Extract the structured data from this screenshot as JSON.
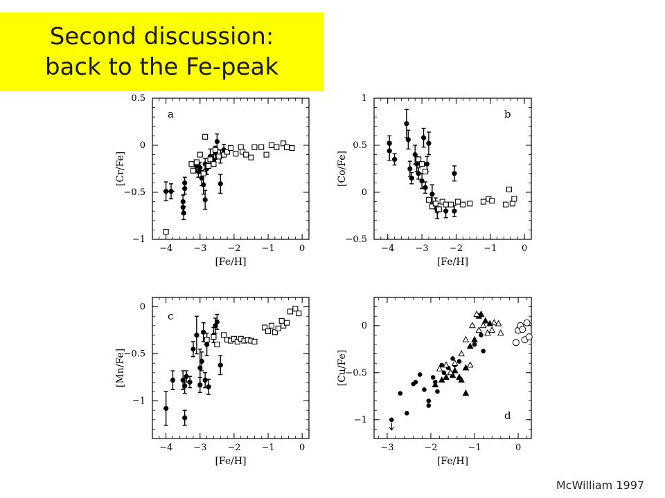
{
  "slide": {
    "title_line1": "Second discussion:",
    "title_line2": "back to the Fe-peak",
    "credit": "McWilliam 1997"
  },
  "colors": {
    "title_bg": "#ffff00",
    "ink": "#000000"
  },
  "chart_data": [
    {
      "type": "scatter",
      "panel_label": "a",
      "xlabel": "[Fe/H]",
      "ylabel": "[Cr/Fe]",
      "xlim": [
        -4.4,
        0.2
      ],
      "ylim": [
        -1,
        0.5
      ],
      "xticks": [
        -4,
        -3,
        -2,
        -1,
        0
      ],
      "yticks": [
        0.5,
        0,
        -0.5,
        -1
      ],
      "series": [
        {
          "marker": "filled-circle-errorbar",
          "points": [
            [
              -4.0,
              -0.49,
              0.08,
              0.1
            ],
            [
              -3.85,
              -0.49,
              0.1,
              0.08
            ],
            [
              -3.5,
              -0.6,
              0,
              0.07
            ],
            [
              -3.5,
              -0.66,
              0,
              0.07
            ],
            [
              -3.48,
              -0.72,
              0,
              0.07
            ],
            [
              -3.45,
              -0.4,
              0,
              0.06
            ],
            [
              -3.45,
              -0.46,
              0,
              0.06
            ],
            [
              -3.1,
              -0.22,
              0,
              0.06
            ],
            [
              -3.05,
              -0.28,
              0,
              0.06
            ],
            [
              -3.0,
              -0.24,
              0,
              0.06
            ],
            [
              -2.95,
              -0.35,
              0,
              0.08
            ],
            [
              -2.9,
              -0.42,
              0,
              0.1
            ],
            [
              -2.85,
              -0.2,
              0,
              0.06
            ],
            [
              -2.8,
              -0.25,
              0,
              0.06
            ],
            [
              -2.85,
              -0.58,
              0,
              0.1
            ],
            [
              -2.7,
              -0.12,
              0,
              0.08
            ],
            [
              -2.6,
              -0.16,
              0,
              0.06
            ],
            [
              -2.55,
              -0.08,
              0,
              0.07
            ],
            [
              -2.5,
              0.04,
              0,
              0.08
            ],
            [
              -2.4,
              -0.41,
              0,
              0.1
            ],
            [
              -2.4,
              -0.12,
              0,
              0.07
            ],
            [
              -2.3,
              -0.05,
              0,
              0.06
            ]
          ]
        },
        {
          "marker": "open-square",
          "points": [
            [
              -4.0,
              -0.92
            ],
            [
              -3.25,
              -0.2
            ],
            [
              -3.2,
              -0.27
            ],
            [
              -3.1,
              -0.18
            ],
            [
              -3.0,
              -0.1
            ],
            [
              -2.9,
              -0.3
            ],
            [
              -2.85,
              0.09
            ],
            [
              -2.75,
              -0.22
            ],
            [
              -2.7,
              -0.15
            ],
            [
              -2.6,
              -0.2
            ],
            [
              -2.55,
              -0.05
            ],
            [
              -2.45,
              -0.12
            ],
            [
              -2.3,
              -0.1
            ],
            [
              -2.2,
              -0.07
            ],
            [
              -2.1,
              -0.03
            ],
            [
              -1.95,
              -0.09
            ],
            [
              -1.8,
              -0.02
            ],
            [
              -1.75,
              -0.07
            ],
            [
              -1.65,
              -0.1
            ],
            [
              -1.5,
              -0.13
            ],
            [
              -1.4,
              -0.02
            ],
            [
              -1.2,
              -0.02
            ],
            [
              -1.05,
              -0.1
            ],
            [
              -0.9,
              0.0
            ],
            [
              -0.75,
              -0.02
            ],
            [
              -0.55,
              0.02
            ],
            [
              -0.45,
              -0.02
            ],
            [
              -0.3,
              -0.03
            ]
          ]
        }
      ]
    },
    {
      "type": "scatter",
      "panel_label": "b",
      "xlabel": "[Fe/H]",
      "ylabel": "[Co/Fe]",
      "xlim": [
        -4.4,
        0.2
      ],
      "ylim": [
        -0.5,
        1
      ],
      "xticks": [
        -4,
        -3,
        -2,
        -1,
        0
      ],
      "yticks": [
        1,
        0.5,
        0,
        -0.5
      ],
      "series": [
        {
          "marker": "filled-circle-errorbar",
          "points": [
            [
              -3.95,
              0.52,
              0,
              0.08
            ],
            [
              -3.95,
              0.44,
              0,
              0.1
            ],
            [
              -3.8,
              0.35,
              0,
              0.06
            ],
            [
              -3.45,
              0.73,
              0,
              0.15
            ],
            [
              -3.4,
              0.56,
              0,
              0.1
            ],
            [
              -3.35,
              0.25,
              0,
              0.08
            ],
            [
              -3.3,
              0.15,
              0,
              0.06
            ],
            [
              -3.2,
              0.4,
              0,
              0.1
            ],
            [
              -3.15,
              0.3,
              0,
              0.08
            ],
            [
              -3.1,
              0.2,
              0,
              0.06
            ],
            [
              -3.0,
              0.12,
              0,
              0.08
            ],
            [
              -2.95,
              0.58,
              0,
              0.1
            ],
            [
              -2.9,
              0.05,
              0,
              0.06
            ],
            [
              -2.85,
              0.3,
              0,
              0.08
            ],
            [
              -2.8,
              0.52,
              0,
              0.12
            ],
            [
              -2.7,
              -0.02,
              0,
              0.1
            ],
            [
              -2.6,
              -0.12,
              0,
              0.06
            ],
            [
              -2.55,
              -0.2,
              0,
              0.08
            ],
            [
              -2.3,
              -0.2,
              0,
              0.07
            ],
            [
              -2.05,
              0.2,
              0,
              0.08
            ],
            [
              -2.05,
              -0.2,
              0,
              0.06
            ]
          ]
        },
        {
          "marker": "open-square",
          "points": [
            [
              -3.1,
              0.35
            ],
            [
              -3.0,
              0.3
            ],
            [
              -2.9,
              0.22
            ],
            [
              -2.8,
              -0.08
            ],
            [
              -2.7,
              -0.15
            ],
            [
              -2.6,
              -0.12
            ],
            [
              -2.5,
              -0.18
            ],
            [
              -2.4,
              -0.1
            ],
            [
              -2.3,
              -0.13
            ],
            [
              -2.15,
              -0.13
            ],
            [
              -1.95,
              -0.1
            ],
            [
              -1.8,
              -0.13
            ],
            [
              -1.6,
              -0.12
            ],
            [
              -1.2,
              -0.1
            ],
            [
              -1.05,
              -0.07
            ],
            [
              -0.95,
              -0.09
            ],
            [
              -0.55,
              -0.13
            ],
            [
              -0.45,
              0.03
            ],
            [
              -0.35,
              -0.12
            ],
            [
              -0.3,
              -0.07
            ]
          ]
        }
      ]
    },
    {
      "type": "scatter",
      "panel_label": "c",
      "xlabel": "[Fe/H]",
      "ylabel": "[Mn/Fe]",
      "xlim": [
        -4.4,
        0.2
      ],
      "ylim": [
        -1.4,
        0.1
      ],
      "xticks": [
        -4,
        -3,
        -2,
        -1,
        0
      ],
      "yticks": [
        0,
        -0.5,
        -1
      ],
      "series": [
        {
          "marker": "filled-circle-errorbar",
          "points": [
            [
              -4.0,
              -1.08,
              0,
              0.18
            ],
            [
              -3.8,
              -0.78,
              0,
              0.1
            ],
            [
              -3.5,
              -0.78,
              0,
              0.1
            ],
            [
              -3.45,
              -0.84,
              0,
              0.08
            ],
            [
              -3.45,
              -1.18,
              0,
              0.08
            ],
            [
              -3.4,
              -0.74,
              0,
              0.06
            ],
            [
              -3.3,
              -0.8,
              0,
              0.06
            ],
            [
              -3.2,
              -0.45,
              0,
              0.08
            ],
            [
              -3.1,
              -0.3,
              0,
              0.2
            ],
            [
              -3.0,
              -0.65,
              0,
              0.2
            ],
            [
              -3.0,
              -0.83,
              0,
              0.08
            ],
            [
              -2.95,
              -0.58,
              0,
              0.1
            ],
            [
              -2.9,
              -0.27,
              0,
              0.1
            ],
            [
              -2.85,
              -0.78,
              0,
              0.08
            ],
            [
              -2.8,
              -0.4,
              0,
              0.12
            ],
            [
              -2.75,
              -0.85,
              0,
              0.08
            ],
            [
              -2.6,
              -0.3,
              0,
              0.08
            ],
            [
              -2.55,
              -0.2,
              0,
              0.08
            ],
            [
              -2.5,
              -0.16,
              0,
              0.08
            ],
            [
              -2.4,
              -0.62,
              0,
              0.1
            ]
          ]
        },
        {
          "marker": "open-square",
          "points": [
            [
              -2.8,
              -0.35
            ],
            [
              -2.6,
              -0.32
            ],
            [
              -2.5,
              -0.4
            ],
            [
              -2.3,
              -0.3
            ],
            [
              -2.2,
              -0.35
            ],
            [
              -2.1,
              -0.36
            ],
            [
              -2.0,
              -0.34
            ],
            [
              -1.9,
              -0.37
            ],
            [
              -1.8,
              -0.34
            ],
            [
              -1.7,
              -0.36
            ],
            [
              -1.6,
              -0.35
            ],
            [
              -1.5,
              -0.36
            ],
            [
              -1.4,
              -0.37
            ],
            [
              -1.1,
              -0.22
            ],
            [
              -1.0,
              -0.26
            ],
            [
              -0.9,
              -0.2
            ],
            [
              -0.8,
              -0.27
            ],
            [
              -0.7,
              -0.23
            ],
            [
              -0.6,
              -0.15
            ],
            [
              -0.55,
              -0.2
            ],
            [
              -0.45,
              -0.17
            ],
            [
              -0.35,
              -0.05
            ],
            [
              -0.2,
              -0.02
            ],
            [
              -0.1,
              -0.07
            ]
          ]
        }
      ]
    },
    {
      "type": "scatter",
      "panel_label": "d",
      "xlabel": "[Fe/H]",
      "ylabel": "[Cu/Fe]",
      "xlim": [
        -3.3,
        0.3
      ],
      "ylim": [
        -1.2,
        0.3
      ],
      "xticks": [
        -3,
        -2,
        -1,
        0
      ],
      "yticks": [
        0,
        -0.5,
        -1
      ],
      "series": [
        {
          "marker": "filled-circle",
          "points": [
            [
              -2.9,
              -1.0
            ],
            [
              -2.7,
              -0.72
            ],
            [
              -2.55,
              -0.93
            ],
            [
              -2.4,
              -0.62
            ],
            [
              -2.35,
              -0.6
            ],
            [
              -2.25,
              -0.52
            ],
            [
              -2.15,
              -0.68
            ],
            [
              -2.05,
              -0.8
            ],
            [
              -2.05,
              -0.85
            ],
            [
              -1.95,
              -0.55
            ],
            [
              -1.9,
              -0.6
            ],
            [
              -1.85,
              -0.7
            ],
            [
              -1.75,
              -0.42
            ],
            [
              -1.7,
              -0.5
            ],
            [
              -1.6,
              -0.45
            ],
            [
              -1.5,
              -0.35
            ],
            [
              -1.45,
              -0.42
            ],
            [
              -1.35,
              -0.38
            ],
            [
              -1.0,
              -0.2
            ],
            [
              -0.85,
              -0.1
            ],
            [
              -0.8,
              -0.27
            ]
          ]
        },
        {
          "marker": "filled-triangle",
          "points": [
            [
              -1.9,
              -0.63
            ],
            [
              -1.75,
              -0.58
            ],
            [
              -1.65,
              -0.55
            ],
            [
              -1.55,
              -0.5
            ],
            [
              -1.5,
              -0.53
            ],
            [
              -1.45,
              -0.48
            ],
            [
              -1.35,
              -0.55
            ],
            [
              -1.3,
              -0.58
            ],
            [
              -1.2,
              -0.45
            ],
            [
              -1.2,
              -0.72
            ],
            [
              -1.1,
              -0.22
            ],
            [
              -1.0,
              -0.15
            ],
            [
              -0.9,
              0.1
            ],
            [
              -0.85,
              0.12
            ],
            [
              -0.75,
              0.05
            ],
            [
              -0.65,
              0.02
            ]
          ]
        },
        {
          "marker": "open-triangle",
          "points": [
            [
              -1.8,
              -0.46
            ],
            [
              -1.65,
              -0.42
            ],
            [
              -1.55,
              -0.5
            ],
            [
              -1.45,
              -0.4
            ],
            [
              -1.3,
              -0.3
            ],
            [
              -1.2,
              -0.15
            ],
            [
              -1.1,
              -0.42
            ],
            [
              -1.05,
              0.0
            ],
            [
              -0.95,
              0.12
            ],
            [
              -0.9,
              -0.05
            ],
            [
              -0.8,
              0.0
            ],
            [
              -0.7,
              -0.08
            ],
            [
              -0.6,
              -0.05
            ],
            [
              -0.55,
              0.03
            ],
            [
              -0.45,
              0.02
            ],
            [
              -0.4,
              -0.08
            ]
          ]
        },
        {
          "marker": "open-circle",
          "points": [
            [
              -0.05,
              -0.18
            ],
            [
              0.0,
              -0.05
            ],
            [
              0.05,
              0.0
            ],
            [
              0.1,
              -0.04
            ],
            [
              0.15,
              -0.15
            ],
            [
              0.2,
              0.03
            ],
            [
              0.25,
              -0.12
            ]
          ]
        }
      ]
    }
  ]
}
